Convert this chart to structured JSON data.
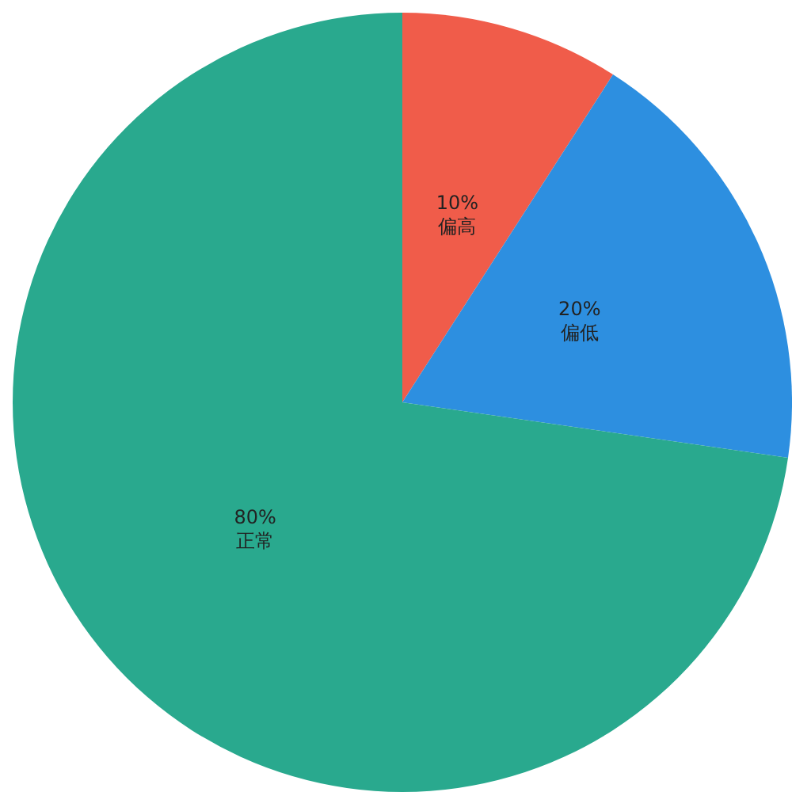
{
  "chart_data": {
    "type": "pie",
    "categories": [
      "偏高",
      "偏低",
      "正常"
    ],
    "values": [
      10,
      20,
      80
    ],
    "value_labels": [
      "10%",
      "20%",
      "80%"
    ],
    "colors": [
      "#f05c4a",
      "#2d8fe0",
      "#29a98e"
    ],
    "legend": false
  }
}
